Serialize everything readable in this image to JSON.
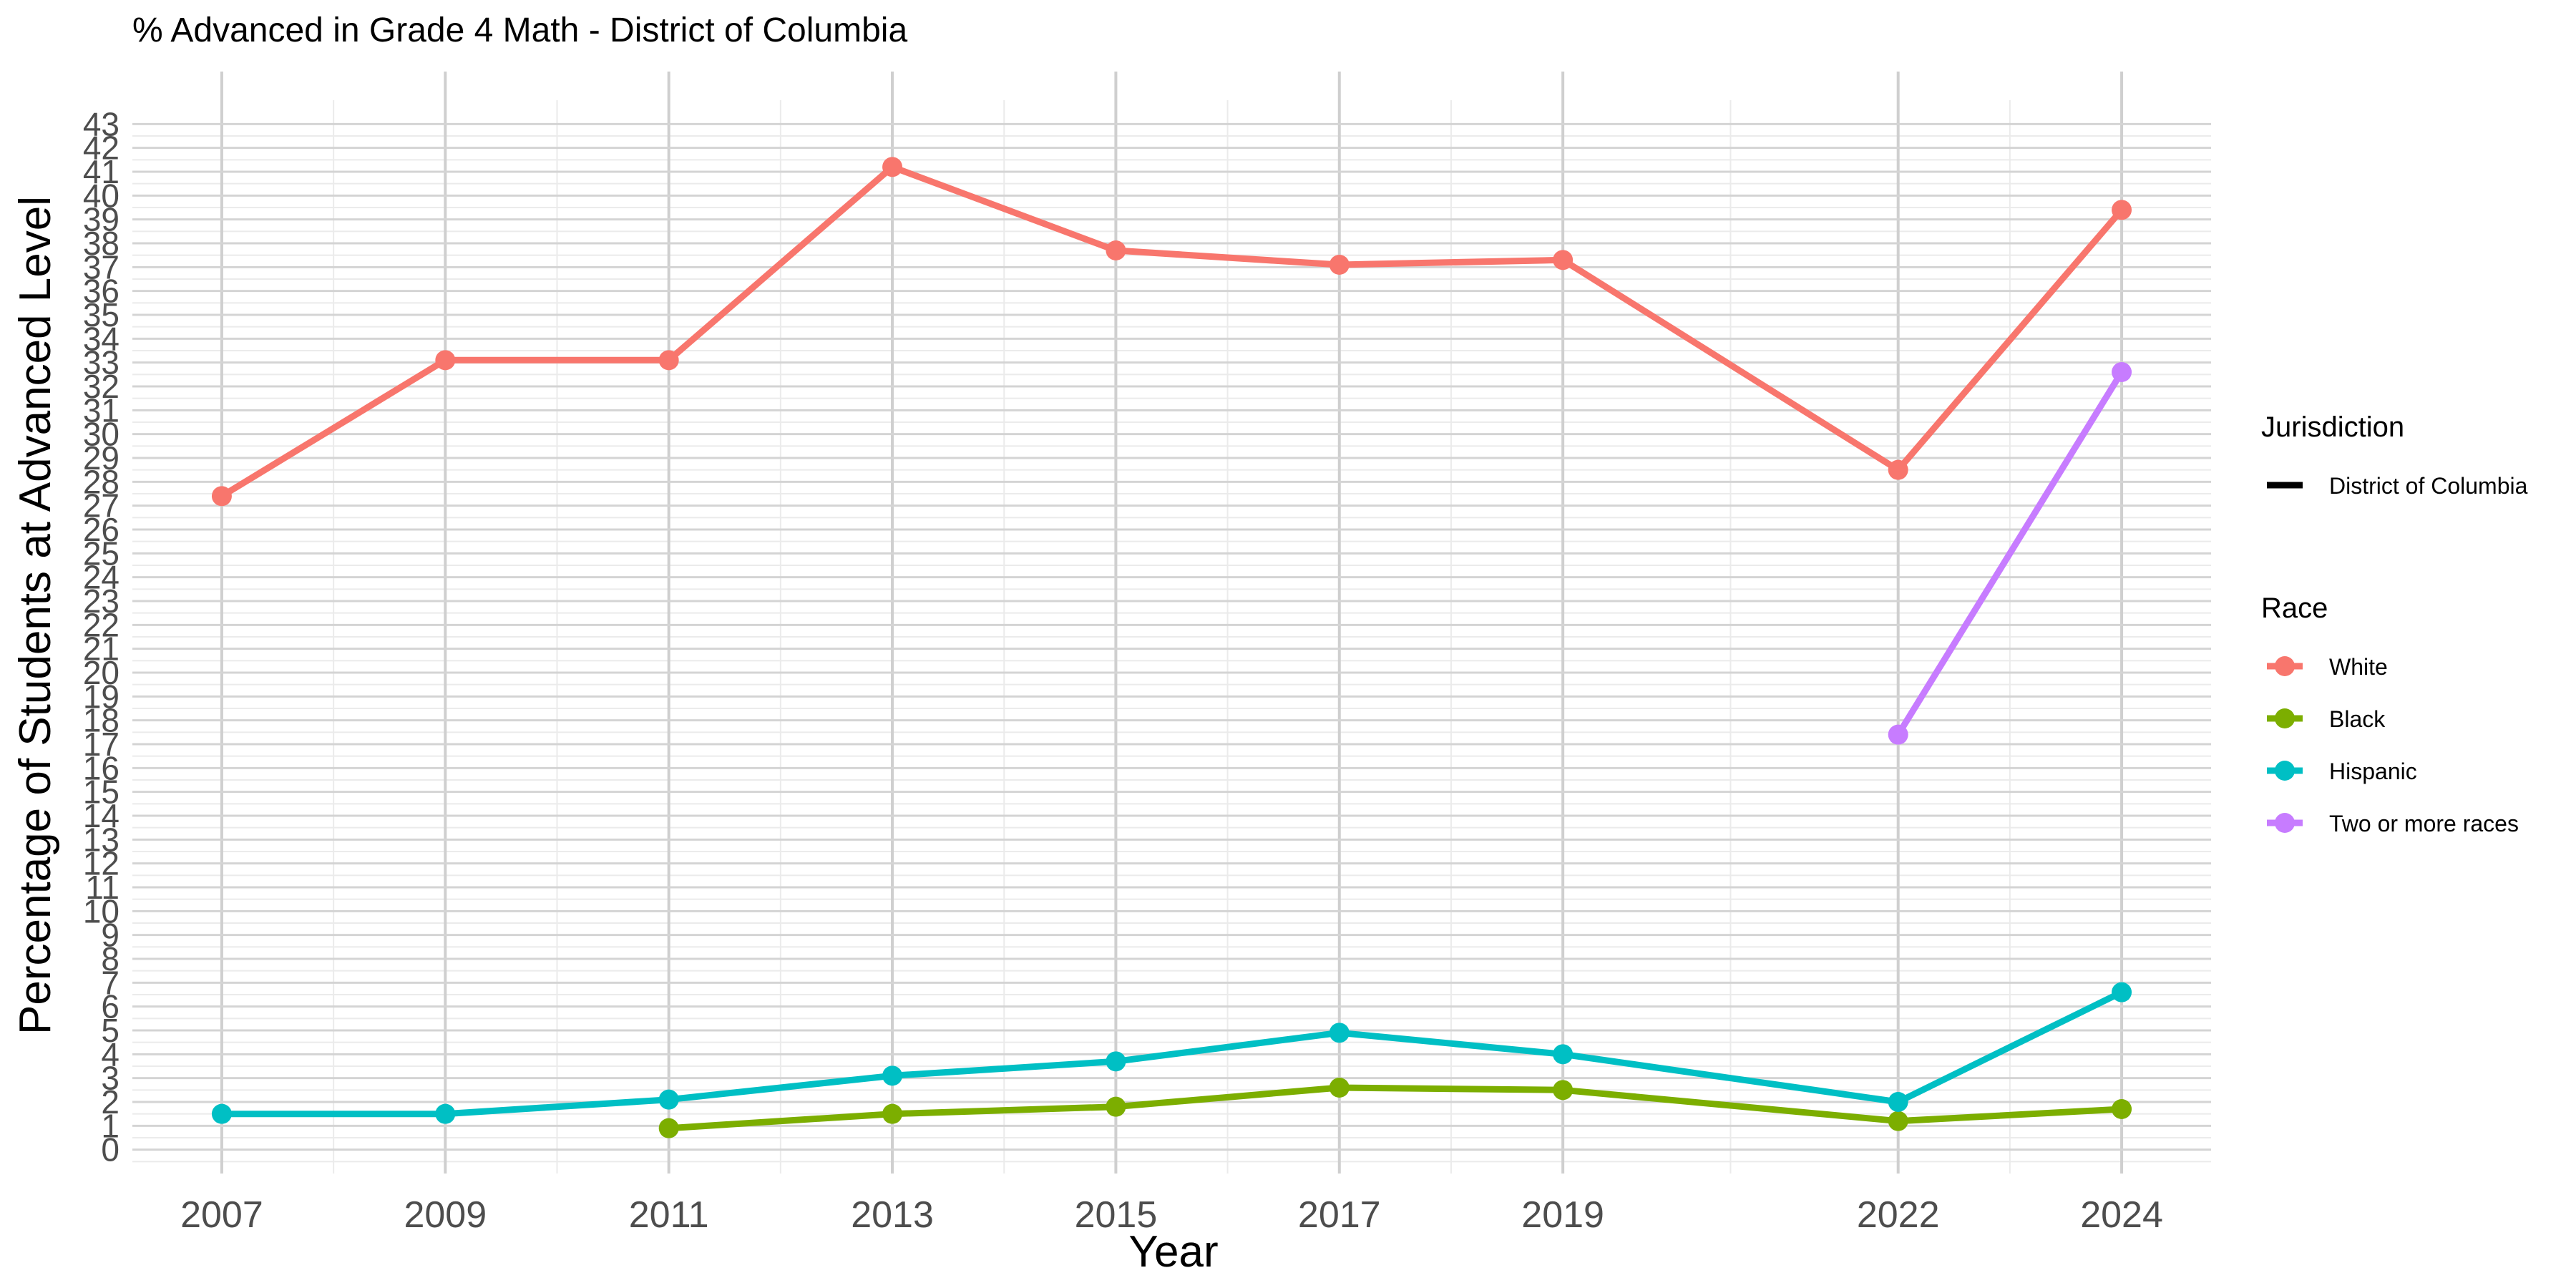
{
  "chart_data": {
    "type": "line",
    "title": "% Advanced in Grade 4 Math - District of Columbia",
    "xlabel": "Year",
    "ylabel": "Percentage of Students at Advanced Level",
    "x": [
      2007,
      2009,
      2011,
      2013,
      2015,
      2017,
      2019,
      2022,
      2024
    ],
    "x_ticks": [
      "2007",
      "2009",
      "2011",
      "2013",
      "2015",
      "2017",
      "2019",
      "2022",
      "2024"
    ],
    "xlim": [
      2006.2,
      2024.8
    ],
    "ylim": [
      -1,
      44
    ],
    "y_ticks": [
      0,
      1,
      2,
      3,
      4,
      5,
      6,
      7,
      8,
      9,
      10,
      11,
      12,
      13,
      14,
      15,
      16,
      17,
      18,
      19,
      20,
      21,
      22,
      23,
      24,
      25,
      26,
      27,
      28,
      29,
      30,
      31,
      32,
      33,
      34,
      35,
      36,
      37,
      38,
      39,
      40,
      41,
      42,
      43
    ],
    "y_tick_labels": [
      "0",
      "1",
      "2",
      "3",
      "4",
      "5",
      "6",
      "7",
      "8",
      "9",
      "10",
      "11",
      "12",
      "13",
      "14",
      "15",
      "16",
      "17",
      "18",
      "19",
      "20",
      "21",
      "22",
      "23",
      "24",
      "25",
      "26",
      "27",
      "28",
      "29",
      "30",
      "31",
      "32",
      "33",
      "34",
      "35",
      "36",
      "37",
      "38",
      "39",
      "40",
      "41",
      "42",
      "43"
    ],
    "grid": true,
    "series": [
      {
        "name": "White",
        "color": "#F8766D",
        "points": [
          [
            2007,
            27.4
          ],
          [
            2009,
            33.1
          ],
          [
            2011,
            33.1
          ],
          [
            2013,
            41.2
          ],
          [
            2015,
            37.7
          ],
          [
            2017,
            37.1
          ],
          [
            2019,
            37.3
          ],
          [
            2022,
            28.5
          ],
          [
            2024,
            39.4
          ]
        ]
      },
      {
        "name": "Black",
        "color": "#7CAE00",
        "points": [
          [
            2011,
            0.9
          ],
          [
            2013,
            1.5
          ],
          [
            2015,
            1.8
          ],
          [
            2017,
            2.6
          ],
          [
            2019,
            2.5
          ],
          [
            2022,
            1.2
          ],
          [
            2024,
            1.7
          ]
        ]
      },
      {
        "name": "Hispanic",
        "color": "#00BFC4",
        "points": [
          [
            2007,
            1.5
          ],
          [
            2009,
            1.5
          ],
          [
            2011,
            2.1
          ],
          [
            2013,
            3.1
          ],
          [
            2015,
            3.7
          ],
          [
            2017,
            4.9
          ],
          [
            2019,
            4.0
          ],
          [
            2022,
            2.0
          ],
          [
            2024,
            6.6
          ]
        ]
      },
      {
        "name": "Two or more races",
        "color": "#C77CFF",
        "points": [
          [
            2022,
            17.4
          ],
          [
            2024,
            32.6
          ]
        ]
      }
    ],
    "legend": {
      "placement": "right",
      "groups": [
        {
          "title": "Jurisdiction",
          "items": [
            {
              "label": "District of Columbia",
              "color": "#000000",
              "symbol": "line"
            }
          ]
        },
        {
          "title": "Race",
          "items": [
            {
              "label": "White",
              "color": "#F8766D",
              "symbol": "line-point"
            },
            {
              "label": "Black",
              "color": "#7CAE00",
              "symbol": "line-point"
            },
            {
              "label": "Hispanic",
              "color": "#00BFC4",
              "symbol": "line-point"
            },
            {
              "label": "Two or more races",
              "color": "#C77CFF",
              "symbol": "line-point"
            }
          ]
        }
      ]
    }
  }
}
